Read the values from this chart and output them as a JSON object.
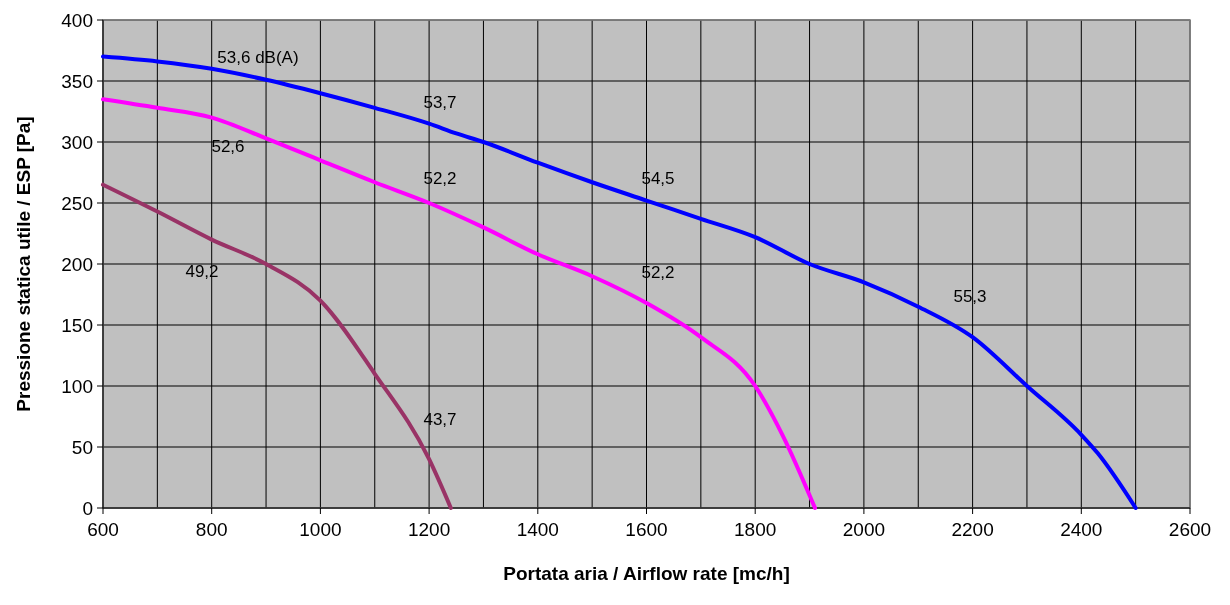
{
  "chart_data": {
    "type": "line",
    "xlabel": "Portata aria / Airflow rate [mc/h]",
    "ylabel": "Pressione statica utile / ESP [Pa]",
    "xlim": [
      600,
      2600
    ],
    "ylim": [
      0,
      400
    ],
    "xticks": [
      600,
      {
        "value": 700,
        "label": null
      },
      800,
      {
        "value": 900,
        "label": null
      },
      1000,
      {
        "value": 1100,
        "label": null
      },
      1200,
      {
        "value": 1300,
        "label": null
      },
      1400,
      {
        "value": 1500,
        "label": null
      },
      1600,
      {
        "value": 1700,
        "label": null
      },
      1800,
      {
        "value": 1900,
        "label": null
      },
      2000,
      {
        "value": 2100,
        "label": null
      },
      2200,
      {
        "value": 2300,
        "label": null
      },
      2400,
      {
        "value": 2500,
        "label": null
      },
      2600
    ],
    "yticks": [
      0,
      50,
      100,
      150,
      200,
      250,
      300,
      350,
      400
    ],
    "grid": true,
    "marker": "none",
    "line_style": "solid",
    "series": [
      {
        "color": "#0000ff",
        "x": [
          600,
          700,
          800,
          900,
          1000,
          1100,
          1200,
          1250,
          1300,
          1400,
          1500,
          1600,
          1700,
          1800,
          1900,
          2000,
          2100,
          2200,
          2300,
          2400,
          2430,
          2500
        ],
        "values": [
          370,
          366,
          360,
          351,
          340,
          328,
          315,
          307,
          300,
          283,
          267,
          252,
          237,
          222,
          200,
          185,
          165,
          140,
          100,
          60,
          45,
          0
        ]
      },
      {
        "color": "#ff00ff",
        "x": [
          600,
          700,
          800,
          900,
          1000,
          1100,
          1200,
          1300,
          1400,
          1500,
          1600,
          1700,
          1800,
          1850,
          1910
        ],
        "values": [
          335,
          328,
          320,
          303,
          285,
          267,
          250,
          230,
          208,
          190,
          168,
          140,
          100,
          60,
          0
        ]
      },
      {
        "color": "#993366",
        "x": [
          600,
          700,
          800,
          900,
          1000,
          1100,
          1200,
          1240
        ],
        "values": [
          265,
          243,
          220,
          200,
          170,
          110,
          40,
          0
        ]
      }
    ],
    "annotations": [
      "53,6 dB(A)",
      "53,7",
      "52,6",
      "52,2",
      "54,5",
      "49,2",
      "52,2",
      "43,7",
      "55,3"
    ]
  }
}
